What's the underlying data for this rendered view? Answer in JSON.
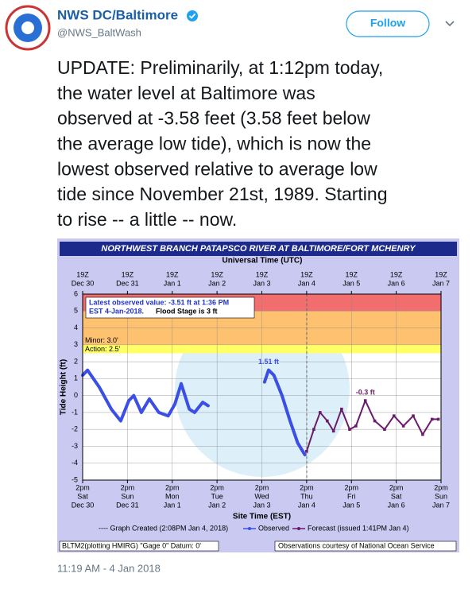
{
  "tweet": {
    "name": "NWS DC/Baltimore",
    "handle": "@NWS_BaltWash",
    "follow": "Follow",
    "text_lines": [
      "UPDATE: Preliminarily, at 1:12pm today,",
      "the water level at Baltimore was",
      "observed at -3.58 feet (3.58 feet below",
      "the average low tide), which is now the",
      "lowest observed relative to average low",
      "tide since November 21st, 1989. Starting",
      "to rise -- a little -- now."
    ],
    "timestamp": "11:19 AM - 4 Jan 2018"
  },
  "chart_data": {
    "type": "line",
    "title": "NORTHWEST BRANCH PATAPSCO RIVER AT BALTIMORE/FORT MCHENRY",
    "top_axis_label": "Universal Time (UTC)",
    "top_time_labels": [
      "19Z",
      "19Z",
      "19Z",
      "19Z",
      "19Z",
      "19Z",
      "19Z",
      "19Z",
      "19Z"
    ],
    "top_date_labels": [
      "Dec 30",
      "Dec 31",
      "Jan 1",
      "Jan 2",
      "Jan 3",
      "Jan 4",
      "Jan 5",
      "Jan 6",
      "Jan 7"
    ],
    "xlim": [
      0,
      8
    ],
    "xticks": [
      {
        "value": 0,
        "label": "2pm"
      },
      {
        "value": 1,
        "label": "2pm"
      },
      {
        "value": 2,
        "label": "2pm"
      },
      {
        "value": 3,
        "label": "2pm"
      },
      {
        "value": 4,
        "label": "2pm"
      },
      {
        "value": 5,
        "label": "2pm"
      },
      {
        "value": 6,
        "label": "2pm"
      },
      {
        "value": 7,
        "label": "2pm"
      },
      {
        "value": 8,
        "label": "2pm"
      }
    ],
    "x_day_labels": [
      "Sat",
      "Sun",
      "Mon",
      "Tue",
      "Wed",
      "Thu",
      "Fri",
      "Sat",
      "Sun"
    ],
    "x_date_labels": [
      "Dec 30",
      "Dec 31",
      "Jan 1",
      "Jan 2",
      "Jan 3",
      "Jan 4",
      "Jan 5",
      "Jan 6",
      "Jan 7"
    ],
    "xlabel": "Site Time (EST)",
    "ylabel": "Tide Height (ft)",
    "ylim": [
      -5,
      6
    ],
    "yticks": [
      -5,
      -4,
      -3,
      -2,
      -1,
      0,
      1,
      2,
      3,
      4,
      5,
      6
    ],
    "grid": true,
    "bands": [
      {
        "from": 5,
        "to": 6,
        "color": "#f26d6d"
      },
      {
        "from": 3,
        "to": 5,
        "color": "#fdc170",
        "label": "Minor: 3.0'"
      },
      {
        "from": 2.5,
        "to": 3,
        "color": "#ffff66",
        "label": "Action: 2.5'"
      }
    ],
    "info_lines": [
      "Latest observed value: -3.51 ft at 1:36 PM",
      "EST 4-Jan-2018."
    ],
    "flood_note": "Flood Stage is 3 ft",
    "legend_note": "---- Graph Created (2:08PM Jan 4, 2018)",
    "footer_left": "BLTM2(plotting HMIRG) \"Gage 0\" Datum: 0'",
    "footer_right": "Observations courtesy of National Ocean Service",
    "series": [
      {
        "name": "Observed",
        "color": "#3b4ee6",
        "peak_label": "1.51 ft",
        "x": [
          0,
          0.11,
          0.37,
          0.64,
          0.85,
          1.03,
          1.14,
          1.31,
          1.49,
          1.7,
          1.91,
          2.06,
          2.2,
          2.38,
          2.5,
          2.68,
          2.8,
          3.4,
          4.06,
          4.15,
          4.27,
          4.45,
          4.63,
          4.8,
          4.96
        ],
        "values": [
          1.2,
          1.5,
          0.5,
          -0.8,
          -1.5,
          -0.3,
          0,
          -1.0,
          -0.2,
          -1.0,
          -1.2,
          -0.5,
          0.7,
          -0.8,
          -1.0,
          -0.4,
          -0.6,
          null,
          0.8,
          1.51,
          1.2,
          0,
          -1.5,
          -2.8,
          -3.5
        ]
      },
      {
        "name": "Forecast (issued 1:41PM Jan 4)",
        "color": "#6a1b6a",
        "peak_label": "-0.3 ft",
        "x": [
          5.0,
          5.16,
          5.3,
          5.46,
          5.6,
          5.78,
          5.96,
          6.1,
          6.31,
          6.52,
          6.74,
          6.95,
          7.16,
          7.38,
          7.59,
          7.8,
          7.94
        ],
        "values": [
          -3.3,
          -2.0,
          -1.0,
          -1.5,
          -2.1,
          -0.8,
          -2.0,
          -1.8,
          -0.3,
          -1.5,
          -2.0,
          -1.2,
          -1.8,
          -1.2,
          -2.3,
          -1.4,
          -1.4
        ]
      }
    ]
  }
}
